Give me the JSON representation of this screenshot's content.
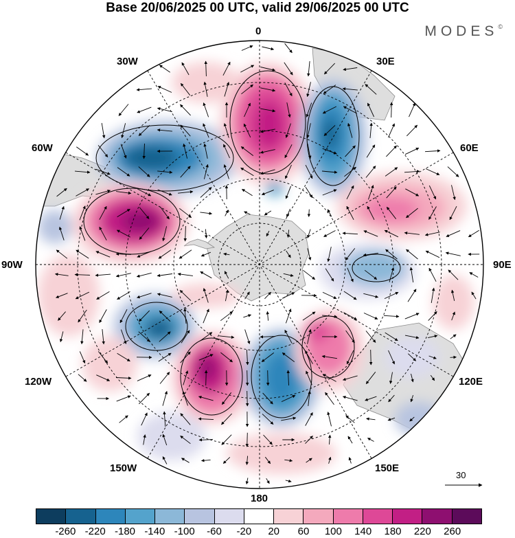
{
  "title": "Base 20/06/2025 00 UTC, valid 29/06/2025 00 UTC",
  "brand": "MODES",
  "brand_mark": "©",
  "longitude_labels": {
    "lon_0": "0",
    "lon_30e": "30E",
    "lon_60e": "60E",
    "lon_90e": "90E",
    "lon_120e": "120E",
    "lon_150e": "150E",
    "lon_180": "180",
    "lon_150w": "150W",
    "lon_120w": "120W",
    "lon_90w": "90W",
    "lon_60w": "60W",
    "lon_30w": "30W"
  },
  "reference_vector_label": "30",
  "colorbar": {
    "ticks": [
      "-260",
      "-220",
      "-180",
      "-140",
      "-100",
      "-60",
      "-20",
      "20",
      "60",
      "100",
      "140",
      "180",
      "220",
      "260"
    ],
    "colors": [
      "#0d3d5e",
      "#16628f",
      "#2d86bb",
      "#54a3cc",
      "#8cb8d8",
      "#b8c4e0",
      "#dcdcee",
      "#ffffff",
      "#f7d2d6",
      "#f4a9bd",
      "#ee7bab",
      "#de4897",
      "#c21f85",
      "#8e0f70",
      "#5c0b5a"
    ]
  },
  "map_colors": {
    "land": "#dedede",
    "coast": "#888888"
  }
}
